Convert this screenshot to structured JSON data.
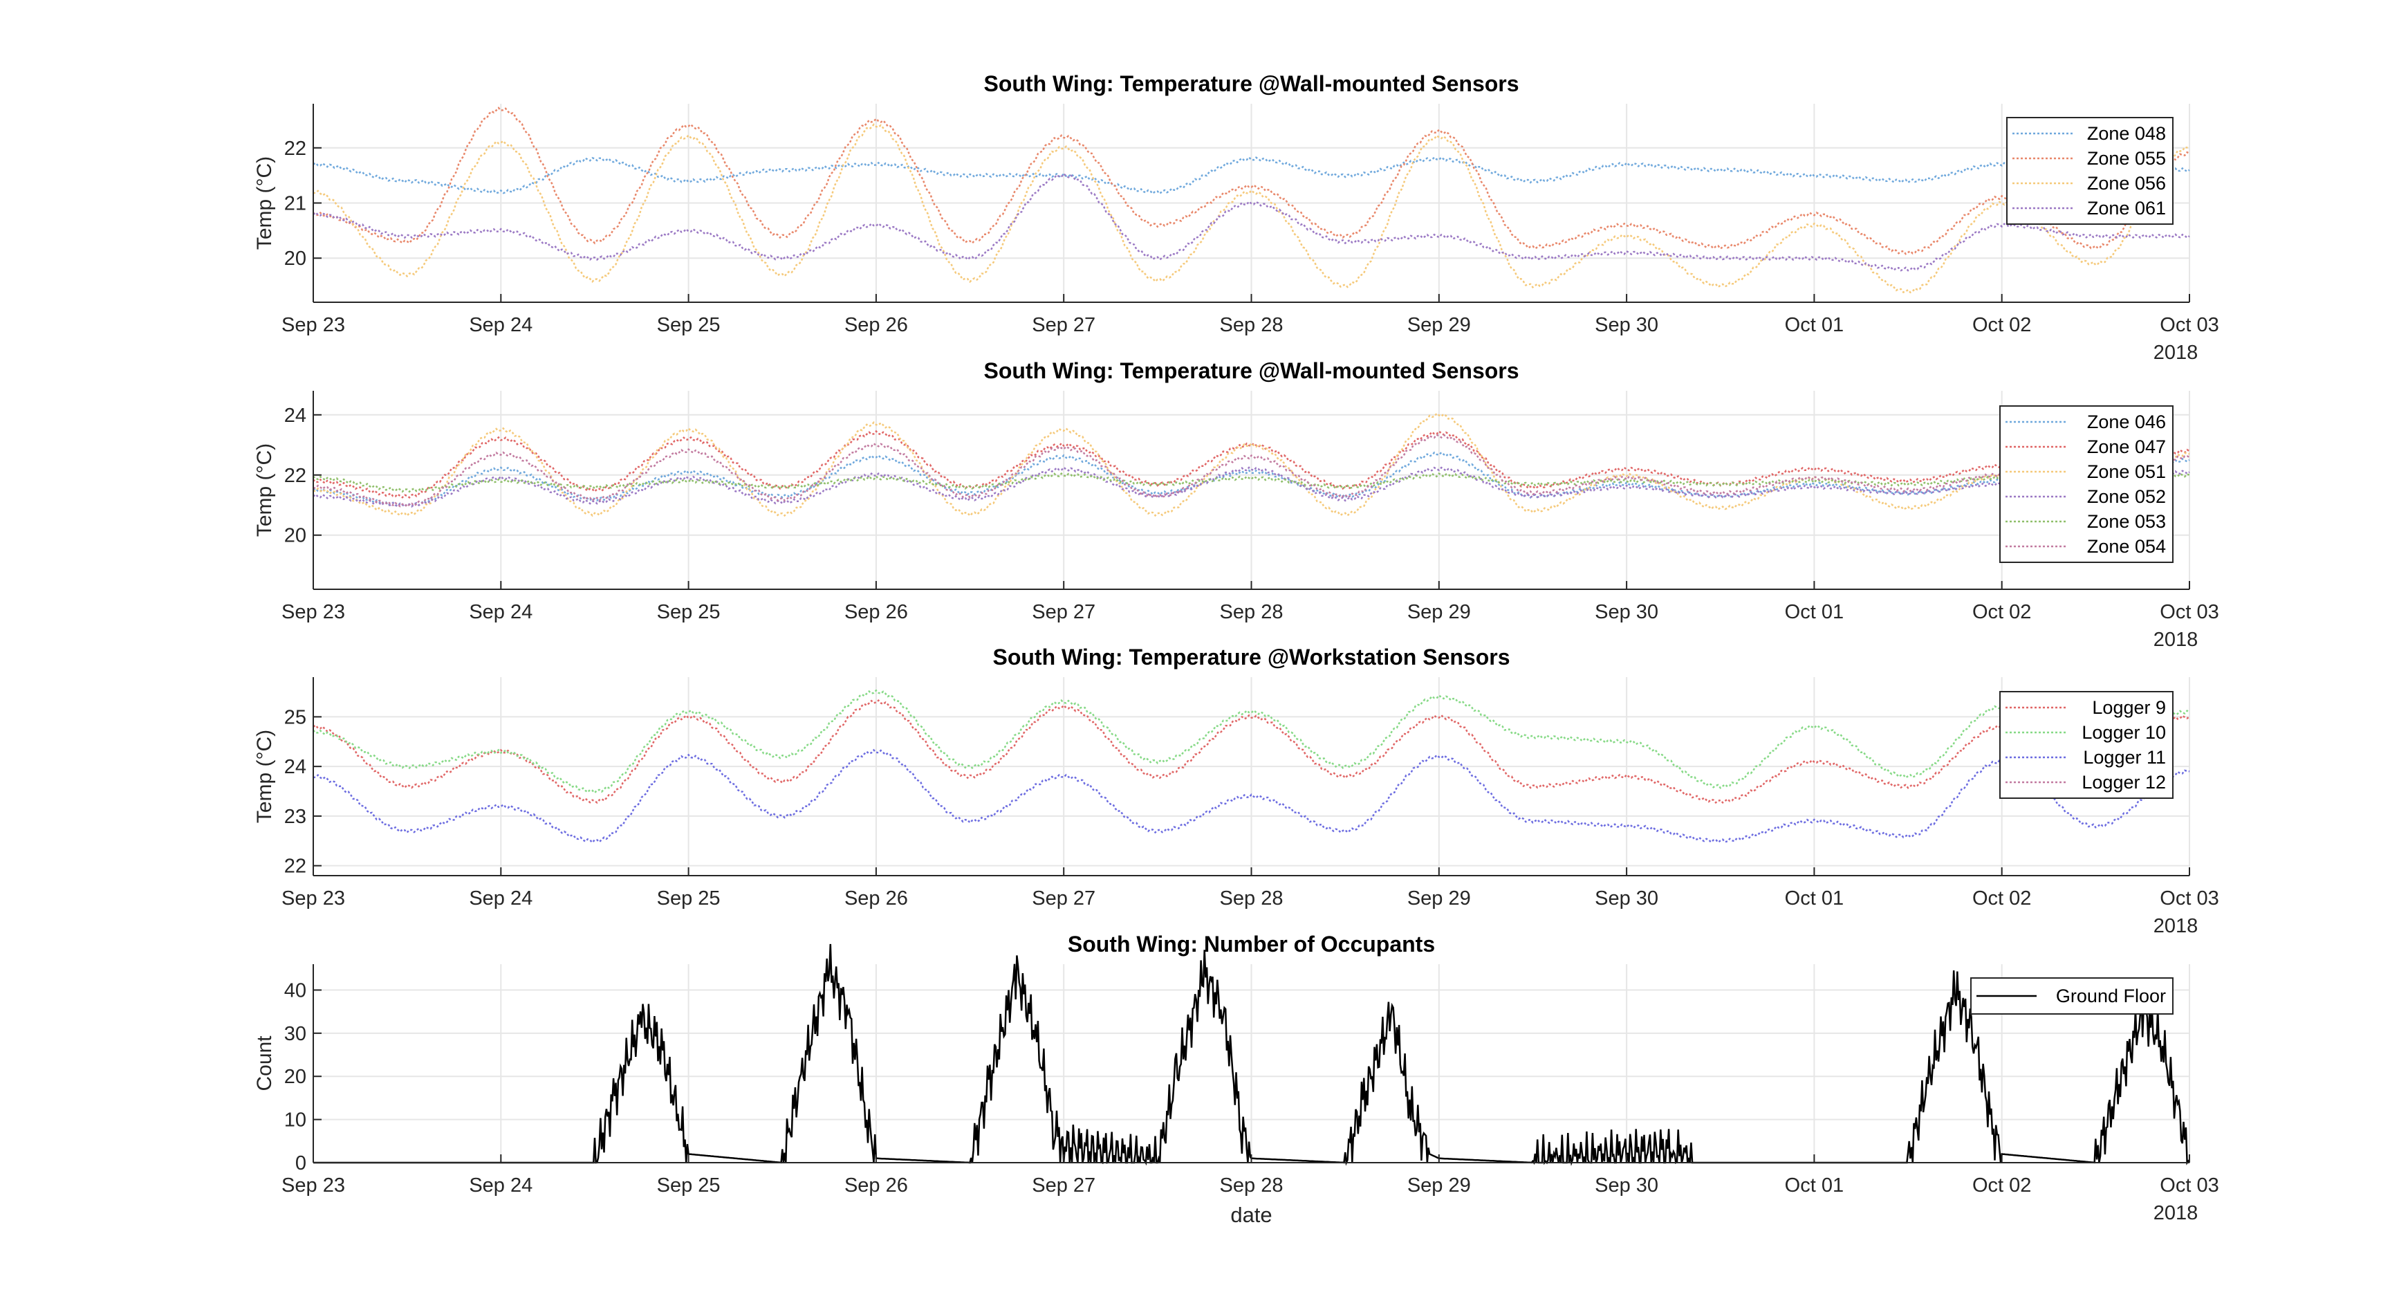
{
  "chart_data": [
    {
      "type": "line",
      "title": "South Wing: Temperature @Wall-mounted Sensors",
      "xlabel": "",
      "ylabel": "Temp (°C)",
      "x_ticks": [
        "Sep 23",
        "Sep 24",
        "Sep 25",
        "Sep 26",
        "Sep 27",
        "Sep 28",
        "Sep 29",
        "Sep 30",
        "Oct 01",
        "Oct 02",
        "Oct 03"
      ],
      "x_year": "2018",
      "xlim": [
        "2018-09-23",
        "2018-10-03"
      ],
      "ylim": [
        19.2,
        22.8
      ],
      "y_ticks": [
        20,
        21,
        22
      ],
      "grid": true,
      "legend_position": "top-right",
      "line_style": "dotted",
      "series": [
        {
          "name": "Zone 048",
          "color": "#6fa8dc",
          "x_days": [
            0,
            0.5,
            1,
            1.5,
            2,
            2.5,
            3,
            3.5,
            4,
            4.5,
            5,
            5.5,
            6,
            6.5,
            7,
            7.5,
            8,
            8.5,
            9,
            9.5,
            10
          ],
          "values": [
            21.7,
            21.4,
            21.2,
            21.8,
            21.4,
            21.6,
            21.7,
            21.5,
            21.5,
            21.2,
            21.8,
            21.5,
            21.8,
            21.4,
            21.7,
            21.6,
            21.5,
            21.4,
            21.7,
            21.6,
            21.6
          ]
        },
        {
          "name": "Zone 055",
          "color": "#e8876a",
          "x_days": [
            0,
            0.5,
            1,
            1.5,
            2,
            2.5,
            3,
            3.5,
            4,
            4.5,
            5,
            5.5,
            6,
            6.5,
            7,
            7.5,
            8,
            8.5,
            9,
            9.5,
            10
          ],
          "values": [
            20.8,
            20.3,
            22.7,
            20.3,
            22.4,
            20.4,
            22.5,
            20.3,
            22.2,
            20.6,
            21.3,
            20.4,
            22.3,
            20.2,
            20.6,
            20.2,
            20.8,
            20.1,
            21.1,
            20.2,
            21.9
          ]
        },
        {
          "name": "Zone 056",
          "color": "#f5c97a",
          "x_days": [
            0,
            0.5,
            1,
            1.5,
            2,
            2.5,
            3,
            3.5,
            4,
            4.5,
            5,
            5.5,
            6,
            6.5,
            7,
            7.5,
            8,
            8.5,
            9,
            9.5,
            10
          ],
          "values": [
            21.2,
            19.7,
            22.1,
            19.6,
            22.2,
            19.7,
            22.4,
            19.6,
            22.0,
            19.6,
            21.2,
            19.5,
            22.2,
            19.5,
            20.4,
            19.5,
            20.6,
            19.4,
            21.0,
            19.9,
            22.0
          ]
        },
        {
          "name": "Zone 061",
          "color": "#9b79c4",
          "x_days": [
            0,
            0.5,
            1,
            1.5,
            2,
            2.5,
            3,
            3.5,
            4,
            4.5,
            5,
            5.5,
            6,
            6.5,
            7,
            7.5,
            8,
            8.5,
            9,
            9.5,
            10
          ],
          "values": [
            20.8,
            20.4,
            20.5,
            20.0,
            20.5,
            20.0,
            20.6,
            20.0,
            21.5,
            20.0,
            21.0,
            20.3,
            20.4,
            20.0,
            20.1,
            20.0,
            20.0,
            19.8,
            20.6,
            20.4,
            20.4
          ]
        }
      ]
    },
    {
      "type": "line",
      "title": "South Wing: Temperature @Wall-mounted Sensors",
      "xlabel": "",
      "ylabel": "Temp (°C)",
      "x_ticks": [
        "Sep 23",
        "Sep 24",
        "Sep 25",
        "Sep 26",
        "Sep 27",
        "Sep 28",
        "Sep 29",
        "Sep 30",
        "Oct 01",
        "Oct 02",
        "Oct 03"
      ],
      "x_year": "2018",
      "xlim": [
        "2018-09-23",
        "2018-10-03"
      ],
      "ylim": [
        18.2,
        24.8
      ],
      "y_ticks": [
        20,
        22,
        24
      ],
      "grid": true,
      "legend_position": "top-right",
      "line_style": "dotted",
      "series": [
        {
          "name": "Zone 046",
          "color": "#6fa8dc",
          "x_days": [
            0,
            0.5,
            1,
            1.5,
            2,
            2.5,
            3,
            3.5,
            4,
            4.5,
            5,
            5.5,
            6,
            6.5,
            7,
            7.5,
            8,
            8.5,
            9,
            9.5,
            10
          ],
          "values": [
            21.5,
            21.0,
            22.2,
            21.2,
            22.1,
            21.3,
            22.6,
            21.4,
            22.6,
            21.4,
            22.1,
            21.3,
            22.7,
            21.3,
            21.7,
            21.3,
            21.7,
            21.4,
            21.8,
            21.5,
            22.5
          ]
        },
        {
          "name": "Zone 047",
          "color": "#e06666",
          "x_days": [
            0,
            0.5,
            1,
            1.5,
            2,
            2.5,
            3,
            3.5,
            4,
            4.5,
            5,
            5.5,
            6,
            6.5,
            7,
            7.5,
            8,
            8.5,
            9,
            9.5,
            10
          ],
          "values": [
            21.8,
            21.3,
            23.2,
            21.5,
            23.2,
            21.6,
            23.4,
            21.6,
            23.0,
            21.7,
            23.0,
            21.6,
            23.4,
            21.6,
            22.2,
            21.7,
            22.2,
            21.8,
            22.3,
            21.9,
            22.8
          ]
        },
        {
          "name": "Zone 051",
          "color": "#f5c97a",
          "x_days": [
            0,
            0.5,
            1,
            1.5,
            2,
            2.5,
            3,
            3.5,
            4,
            4.5,
            5,
            5.5,
            6,
            6.5,
            7,
            7.5,
            8,
            8.5,
            9,
            9.5,
            10
          ],
          "values": [
            21.5,
            20.7,
            23.5,
            20.7,
            23.5,
            20.7,
            23.7,
            20.7,
            23.5,
            20.7,
            23.0,
            20.7,
            24.0,
            20.8,
            22.0,
            20.9,
            21.9,
            20.9,
            22.0,
            21.0,
            22.7
          ]
        },
        {
          "name": "Zone 052",
          "color": "#9b79c4",
          "x_days": [
            0,
            0.5,
            1,
            1.5,
            2,
            2.5,
            3,
            3.5,
            4,
            4.5,
            5,
            5.5,
            6,
            6.5,
            7,
            7.5,
            8,
            8.5,
            9,
            9.5,
            10
          ],
          "values": [
            21.3,
            21.0,
            21.9,
            21.1,
            21.9,
            21.1,
            22.0,
            21.2,
            22.2,
            21.3,
            22.2,
            21.2,
            22.2,
            21.3,
            21.6,
            21.3,
            21.6,
            21.4,
            21.7,
            21.5,
            22.1
          ]
        },
        {
          "name": "Zone 053",
          "color": "#8fbf6a",
          "x_days": [
            0,
            0.5,
            1,
            1.5,
            2,
            2.5,
            3,
            3.5,
            4,
            4.5,
            5,
            5.5,
            6,
            6.5,
            7,
            7.5,
            8,
            8.5,
            9,
            9.5,
            10
          ],
          "values": [
            21.9,
            21.5,
            21.8,
            21.6,
            21.8,
            21.6,
            21.9,
            21.6,
            22.0,
            21.7,
            21.9,
            21.6,
            22.0,
            21.7,
            21.8,
            21.7,
            21.8,
            21.7,
            21.9,
            21.7,
            22.0
          ]
        },
        {
          "name": "Zone 054",
          "color": "#c27ba0",
          "x_days": [
            0,
            0.5,
            1,
            1.5,
            2,
            2.5,
            3,
            3.5,
            4,
            4.5,
            5,
            5.5,
            6,
            6.5,
            7,
            7.5,
            8,
            8.5,
            9,
            9.5,
            10
          ],
          "values": [
            21.6,
            21.0,
            22.7,
            21.2,
            22.8,
            21.2,
            23.0,
            21.3,
            22.9,
            21.3,
            22.6,
            21.3,
            23.3,
            21.4,
            21.9,
            21.4,
            21.9,
            21.5,
            22.0,
            21.6,
            22.6
          ]
        }
      ]
    },
    {
      "type": "line",
      "title": "South Wing: Temperature @Workstation Sensors",
      "xlabel": "",
      "ylabel": "Temp (°C)",
      "x_ticks": [
        "Sep 23",
        "Sep 24",
        "Sep 25",
        "Sep 26",
        "Sep 27",
        "Sep 28",
        "Sep 29",
        "Sep 30",
        "Oct 01",
        "Oct 02",
        "Oct 03"
      ],
      "x_year": "2018",
      "xlim": [
        "2018-09-23",
        "2018-10-03"
      ],
      "ylim": [
        21.8,
        25.8
      ],
      "y_ticks": [
        22,
        23,
        24,
        25
      ],
      "grid": true,
      "legend_position": "top-right",
      "line_style": "dotted",
      "series": [
        {
          "name": "Logger 9",
          "color": "#e06666",
          "x_days": [
            0,
            0.5,
            1,
            1.5,
            2,
            2.5,
            3,
            3.5,
            4,
            4.5,
            5,
            5.5,
            6,
            6.5,
            7,
            7.5,
            8,
            8.5,
            9,
            9.5,
            10
          ],
          "values": [
            24.8,
            23.6,
            24.3,
            23.3,
            25.0,
            23.7,
            25.3,
            23.8,
            25.2,
            23.8,
            25.0,
            23.8,
            25.0,
            23.6,
            23.8,
            23.3,
            24.1,
            23.6,
            24.8,
            24.4,
            25.0
          ]
        },
        {
          "name": "Logger 10",
          "color": "#86d986",
          "x_days": [
            0,
            0.5,
            1,
            1.5,
            2,
            2.5,
            3,
            3.5,
            4,
            4.5,
            5,
            5.5,
            6,
            6.5,
            7,
            7.5,
            8,
            8.5,
            9,
            9.5,
            10
          ],
          "values": [
            24.7,
            24.0,
            24.3,
            23.5,
            25.1,
            24.2,
            25.5,
            24.0,
            25.3,
            24.1,
            25.1,
            24.0,
            25.4,
            24.6,
            24.5,
            23.6,
            24.8,
            23.8,
            25.2,
            24.5,
            25.1
          ]
        },
        {
          "name": "Logger 11",
          "color": "#6c6ce0",
          "x_days": [
            0,
            0.5,
            1,
            1.5,
            2,
            2.5,
            3,
            3.5,
            4,
            4.5,
            5,
            5.5,
            6,
            6.5,
            7,
            7.5,
            8,
            8.5,
            9,
            9.5,
            10
          ],
          "values": [
            23.8,
            22.7,
            23.2,
            22.5,
            24.2,
            23.0,
            24.3,
            22.9,
            23.8,
            22.7,
            23.4,
            22.7,
            24.2,
            22.9,
            22.8,
            22.5,
            22.9,
            22.6,
            24.1,
            22.8,
            23.9
          ]
        },
        {
          "name": "Logger 12",
          "color": "#c27ba0",
          "x_days": [],
          "values": []
        }
      ]
    },
    {
      "type": "line",
      "title": "South Wing: Number of Occupants",
      "xlabel": "date",
      "ylabel": "Count",
      "x_ticks": [
        "Sep 23",
        "Sep 24",
        "Sep 25",
        "Sep 26",
        "Sep 27",
        "Sep 28",
        "Sep 29",
        "Sep 30",
        "Oct 01",
        "Oct 02",
        "Oct 03"
      ],
      "x_year": "2018",
      "xlim": [
        "2018-09-23",
        "2018-10-03"
      ],
      "ylim": [
        0,
        46
      ],
      "y_ticks": [
        0,
        10,
        20,
        30,
        40
      ],
      "grid": true,
      "legend_position": "top-right",
      "line_style": "solid",
      "series": [
        {
          "name": "Ground Floor",
          "color": "#000000",
          "x_days": [
            0,
            1.5,
            1.6,
            1.75,
            1.85,
            1.95,
            2.0,
            2.5,
            2.6,
            2.75,
            2.85,
            2.95,
            3.0,
            3.5,
            3.6,
            3.75,
            3.85,
            3.95,
            4.0,
            4.5,
            4.6,
            4.75,
            4.85,
            4.95,
            5.0,
            5.5,
            5.6,
            5.75,
            5.85,
            5.95,
            6.0,
            6.5,
            7.25,
            7.35,
            8.5,
            8.6,
            8.75,
            8.85,
            8.95,
            9.0,
            9.5,
            9.6,
            9.75,
            9.85,
            9.95,
            10.0
          ],
          "values": [
            0,
            0,
            15,
            33,
            28,
            10,
            2,
            0,
            20,
            45,
            35,
            10,
            1,
            0,
            18,
            44,
            30,
            8,
            4,
            0,
            20,
            44,
            35,
            8,
            1,
            0,
            15,
            35,
            12,
            2,
            1,
            0,
            3,
            0,
            0,
            18,
            40,
            30,
            8,
            2,
            0,
            15,
            35,
            28,
            10,
            0
          ]
        }
      ]
    }
  ]
}
